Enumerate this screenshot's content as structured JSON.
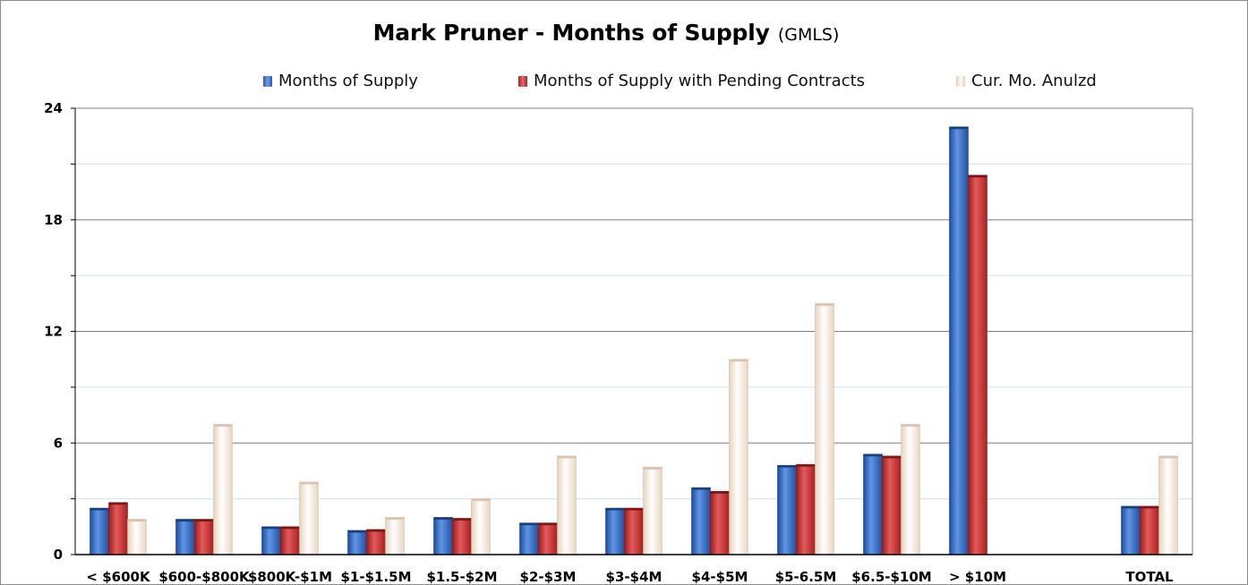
{
  "title": "Mark Pruner - Months of Supply",
  "subtitle": "(GMLS)",
  "chart_data": {
    "type": "bar",
    "categories": [
      "< $600K",
      "$600-$800K",
      "$800K-$1M",
      "$1-$1.5M",
      "$1.5-$2M",
      "$2-$3M",
      "$3-$4M",
      "$4-$5M",
      "$5-6.5M",
      "$6.5-$10M",
      "> $10M",
      "",
      "TOTAL"
    ],
    "series": [
      {
        "name": "Months of Supply",
        "color": "#3a6fc4",
        "values": [
          2.5,
          1.9,
          1.5,
          1.3,
          2.0,
          1.7,
          2.5,
          3.6,
          4.8,
          5.4,
          23.0,
          null,
          2.6
        ]
      },
      {
        "name": "Months of Supply with Pending Contracts",
        "color": "#c73535",
        "values": [
          2.8,
          1.9,
          1.5,
          1.35,
          1.95,
          1.7,
          2.5,
          3.4,
          4.85,
          5.3,
          20.4,
          null,
          2.6
        ]
      },
      {
        "name": "Cur. Mo. Anulzd",
        "color": "#f6ebe0",
        "values": [
          1.9,
          7.0,
          3.9,
          2.0,
          3.0,
          5.3,
          4.7,
          10.5,
          13.5,
          7.0,
          null,
          null,
          5.3
        ]
      }
    ],
    "ylim": [
      0,
      24
    ],
    "yticks": [
      0,
      6,
      12,
      18,
      24
    ],
    "grid": true,
    "legend": "top"
  }
}
